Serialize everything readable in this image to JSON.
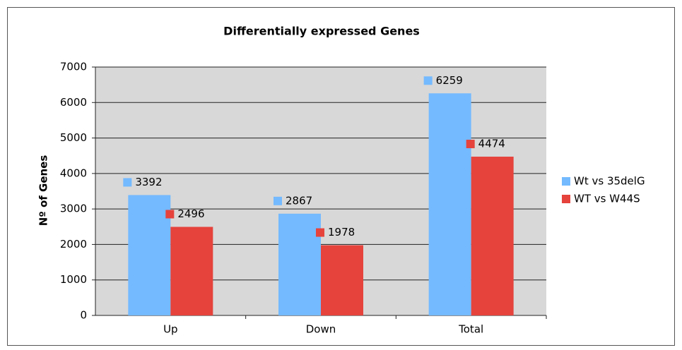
{
  "chart_data": {
    "type": "bar",
    "title": "Differentially expressed Genes",
    "y_label": "Nº of Genes",
    "categories": [
      "Up",
      "Down",
      "Total"
    ],
    "series": [
      {
        "name": "Wt vs 35delG",
        "color": "#74baff",
        "values": [
          3392,
          2867,
          6259
        ]
      },
      {
        "name": "WT vs W44S",
        "color": "#e5433c",
        "values": [
          2496,
          1978,
          4474
        ]
      }
    ],
    "ylim": [
      0,
      7000
    ],
    "yticks": [
      0,
      1000,
      2000,
      3000,
      4000,
      5000,
      6000,
      7000
    ],
    "grid": true,
    "legend": "right"
  }
}
